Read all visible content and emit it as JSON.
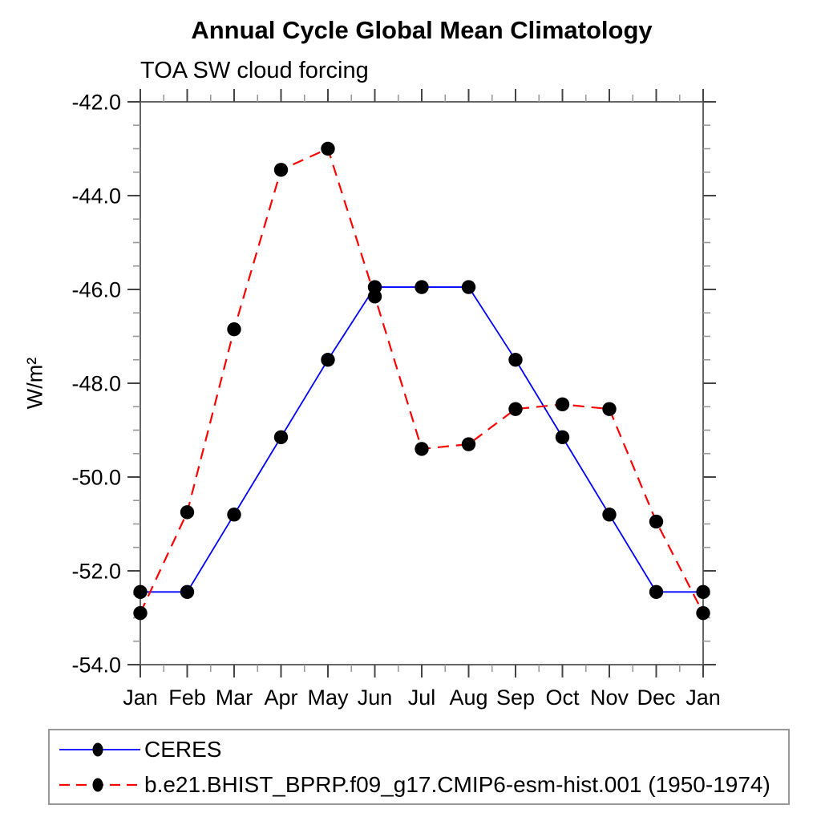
{
  "chart_data": {
    "type": "line",
    "title": "Annual Cycle Global Mean Climatology",
    "subtitle": "TOA SW cloud forcing",
    "ylabel": "W/m²",
    "xlabel": "",
    "categories": [
      "Jan",
      "Feb",
      "Mar",
      "Apr",
      "May",
      "Jun",
      "Jul",
      "Aug",
      "Sep",
      "Oct",
      "Nov",
      "Dec",
      "Jan"
    ],
    "ylim": [
      -54.0,
      -42.0
    ],
    "ytick_step": 2.0,
    "ytick_minor_step": 0.5,
    "ytick_labels": [
      "-42.0",
      "-44.0",
      "-46.0",
      "-48.0",
      "-50.0",
      "-52.0",
      "-54.0"
    ],
    "xtick_minor_per_interval": 1,
    "grid": false,
    "legend_position": "bottom",
    "marker": "filled-circle",
    "marker_color": "#000000",
    "series": [
      {
        "name": "CERES",
        "color": "#0000ff",
        "style": "solid",
        "values": [
          -52.45,
          -52.45,
          -50.8,
          -49.15,
          -47.5,
          -45.95,
          -45.95,
          -45.95,
          -47.5,
          -49.15,
          -50.8,
          -52.45,
          -52.45
        ]
      },
      {
        "name": "b.e21.BHIST_BPRP.f09_g17.CMIP6-esm-hist.001 (1950-1974)",
        "color": "#ff0000",
        "style": "dashed",
        "values": [
          -52.9,
          -50.75,
          -46.85,
          -43.45,
          -43.0,
          -46.15,
          -49.4,
          -49.3,
          -48.55,
          -48.45,
          -48.55,
          -50.95,
          -52.9
        ]
      }
    ]
  }
}
